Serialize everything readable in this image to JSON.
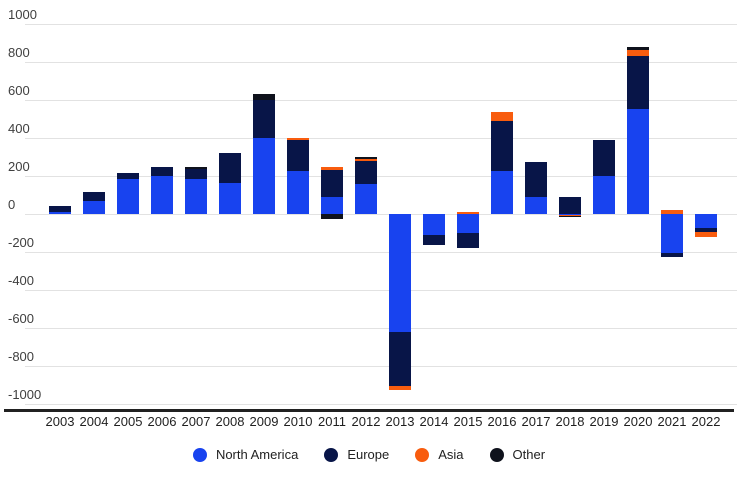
{
  "chart": {
    "background": "#ffffff",
    "gridline_color": "#e2e2e2",
    "axis_line_color": "#212121",
    "y_label_color": "#404040",
    "x_label_color": "#1f1f1f"
  },
  "chart_data": {
    "type": "bar",
    "stacked": true,
    "title": "",
    "xlabel": "",
    "ylabel": "",
    "ylim": [
      -1000,
      1000
    ],
    "y_ticks": [
      1000,
      800,
      600,
      400,
      200,
      0,
      -200,
      -400,
      -600,
      -800,
      -1000
    ],
    "grid": true,
    "legend_position": "bottom",
    "categories": [
      "2003",
      "2004",
      "2005",
      "2006",
      "2007",
      "2008",
      "2009",
      "2010",
      "2011",
      "2012",
      "2013",
      "2014",
      "2015",
      "2016",
      "2017",
      "2018",
      "2019",
      "2020",
      "2021",
      "2022"
    ],
    "series": [
      {
        "name": "North America",
        "color": "#1843ef",
        "values": [
          10,
          70,
          185,
          200,
          185,
          165,
          400,
          225,
          90,
          160,
          -620,
          -110,
          -100,
          225,
          90,
          -5,
          200,
          555,
          -205,
          -75
        ]
      },
      {
        "name": "Europe",
        "color": "#081548",
        "values": [
          30,
          45,
          30,
          50,
          50,
          155,
          200,
          165,
          140,
          120,
          -285,
          -55,
          -80,
          265,
          185,
          90,
          190,
          275,
          -20,
          -20
        ]
      },
      {
        "name": "Asia",
        "color": "#f85c0e",
        "values": [
          0,
          0,
          0,
          0,
          0,
          0,
          0,
          10,
          20,
          10,
          -20,
          0,
          10,
          45,
          0,
          -5,
          0,
          35,
          20,
          -25
        ]
      },
      {
        "name": "Other",
        "color": "#0f121c",
        "values": [
          0,
          0,
          0,
          0,
          15,
          0,
          30,
          0,
          -25,
          10,
          0,
          0,
          0,
          0,
          0,
          -5,
          0,
          15,
          0,
          0
        ]
      }
    ]
  }
}
